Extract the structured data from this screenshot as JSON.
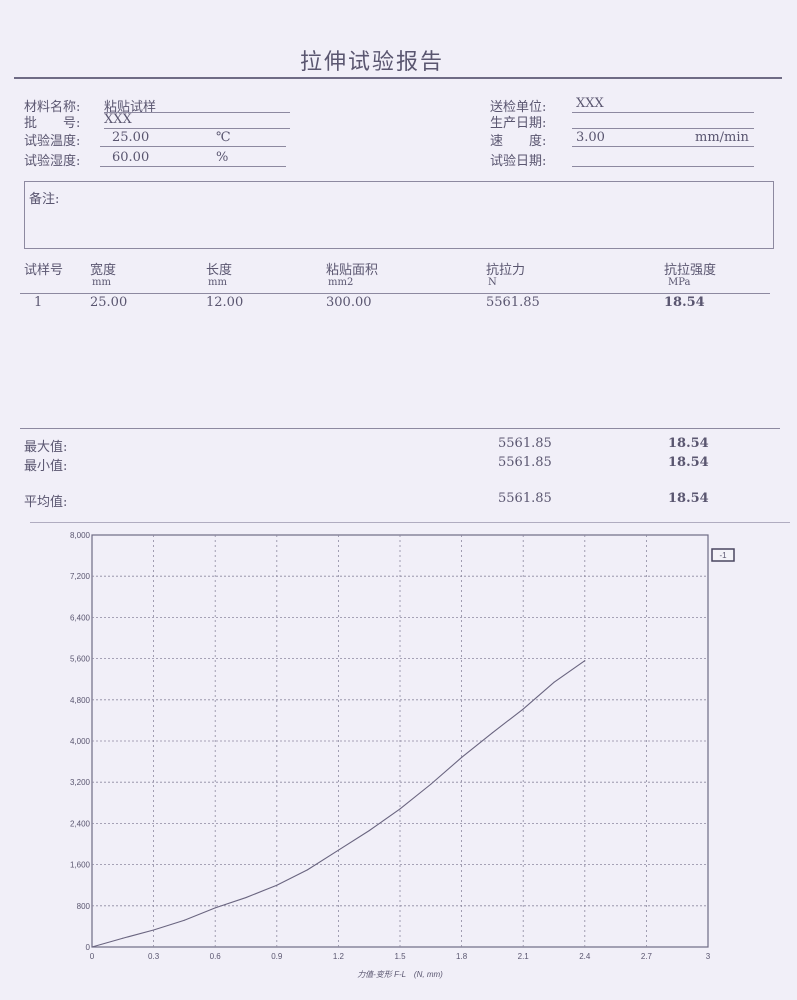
{
  "title": "拉伸试验报告",
  "left_fields": [
    {
      "label": "材料名称:",
      "value": "粘贴试样",
      "unit": ""
    },
    {
      "label": "批　　号:",
      "value": "XXX",
      "unit": ""
    },
    {
      "label": "试验温度:",
      "value": "25.00",
      "unit": "℃"
    },
    {
      "label": "试验湿度:",
      "value": "60.00",
      "unit": "%"
    }
  ],
  "right_fields": [
    {
      "label": "送检单位:",
      "value": "XXX",
      "unit": ""
    },
    {
      "label": "生产日期:",
      "value": "",
      "unit": ""
    },
    {
      "label": "速　　度:",
      "value": "3.00",
      "unit": "mm/min"
    },
    {
      "label": "试验日期:",
      "value": "",
      "unit": ""
    }
  ],
  "remarks_label": "备注:",
  "table": {
    "headers": [
      "试样号",
      "宽度",
      "长度",
      "粘贴面积",
      "抗拉力",
      "抗拉强度"
    ],
    "units": [
      "",
      "mm",
      "mm",
      "mm2",
      "N",
      "MPa"
    ],
    "rows": [
      [
        "1",
        "25.00",
        "12.00",
        "300.00",
        "5561.85",
        "18.54"
      ]
    ]
  },
  "stats": [
    {
      "label": "最大值:",
      "force": "5561.85",
      "strength": "18.54"
    },
    {
      "label": "最小值:",
      "force": "5561.85",
      "strength": "18.54"
    },
    {
      "label": "平均值:",
      "force": "5561.85",
      "strength": "18.54"
    }
  ],
  "chart_data": {
    "type": "line",
    "xlabel": "力值-变形 F-L　(N, mm)",
    "xlim": [
      0,
      3
    ],
    "ylim": [
      0,
      8000
    ],
    "x_ticks": [
      "0",
      "0.3",
      "0.6",
      "0.9",
      "1.2",
      "1.5",
      "1.8",
      "2.1",
      "2.4",
      "2.7",
      "3"
    ],
    "y_ticks": [
      "0",
      "800",
      "1,600",
      "2,400",
      "3,200",
      "4,000",
      "4,800",
      "5,600",
      "6,400",
      "7,200",
      "8,000"
    ],
    "grid": true,
    "legend": "-1",
    "series": [
      {
        "x": [
          0,
          0.15,
          0.3,
          0.45,
          0.6,
          0.75,
          0.9,
          1.05,
          1.2,
          1.35,
          1.5,
          1.65,
          1.8,
          1.95,
          2.1,
          2.25,
          2.4
        ],
        "y": [
          0,
          170,
          330,
          520,
          760,
          960,
          1200,
          1500,
          1880,
          2260,
          2680,
          3160,
          3680,
          4160,
          4620,
          5140,
          5560
        ]
      }
    ],
    "color": "#6a6580"
  }
}
